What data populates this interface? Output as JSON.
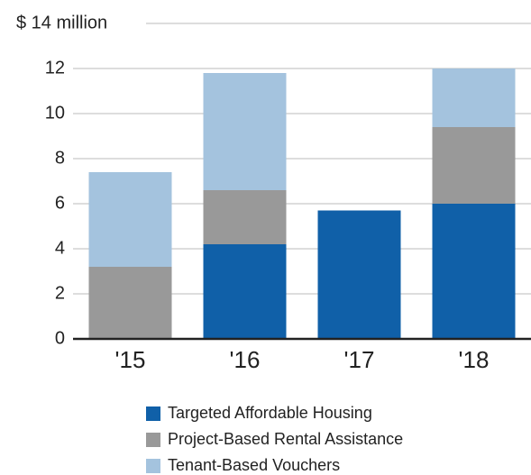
{
  "chart_data": {
    "type": "stacked_bar",
    "categories": [
      "'15",
      "'16",
      "'17",
      "'18"
    ],
    "series": [
      {
        "name": "Targeted Affordable Housing",
        "color": "#1060a8",
        "values": [
          0,
          4.2,
          5.7,
          6.0
        ]
      },
      {
        "name": "Project-Based Rental Assistance",
        "color": "#999999",
        "values": [
          3.2,
          2.4,
          0,
          3.4
        ]
      },
      {
        "name": "Tenant-Based Vouchers",
        "color": "#a4c3de",
        "values": [
          4.2,
          5.2,
          0,
          2.6
        ]
      }
    ],
    "ylim": [
      0,
      14
    ],
    "yticks": [
      0,
      2,
      4,
      6,
      8,
      10,
      12,
      {
        "value": 14,
        "label": "$ 14 million"
      }
    ],
    "grid": true
  }
}
